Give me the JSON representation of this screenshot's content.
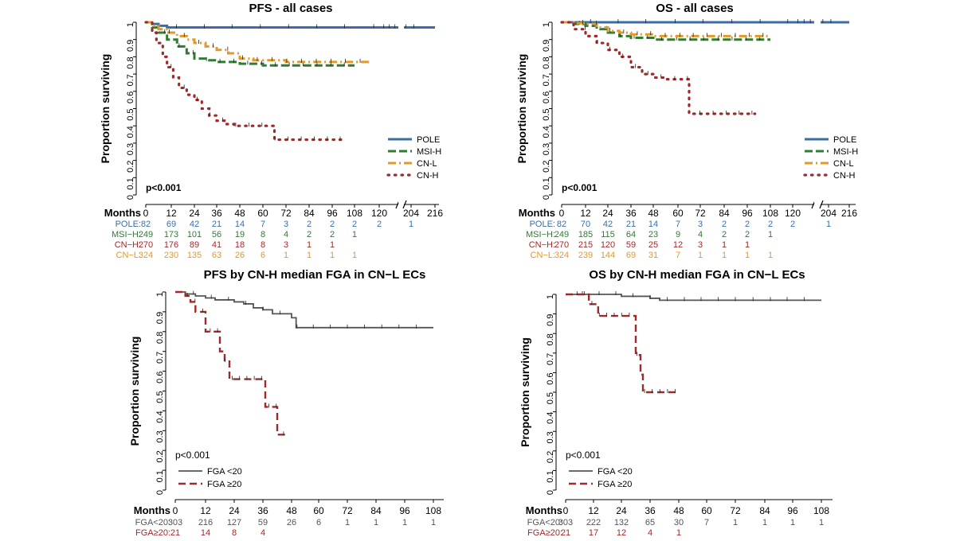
{
  "colors": {
    "pole": "#3a6ea5",
    "msih": "#2e7d32",
    "cnl": "#e09a2c",
    "cnh": "#9e2a2b",
    "fga_lo": "#555555",
    "fga_hi": "#9e2a2b",
    "axis": "#000000"
  },
  "chart_data": [
    {
      "id": "pfs-all",
      "type": "line",
      "subtype": "kaplan-meier",
      "title": "PFS - all cases",
      "ylabel": "Proportion surviving",
      "xlabel": "Months",
      "ylim": [
        0,
        1
      ],
      "yticks": [
        "0",
        "0.1",
        "0.2",
        "0.3",
        "0.4",
        "0.5",
        "0.6",
        "0.7",
        "0.8",
        "0.9",
        "1"
      ],
      "xticks": [
        "0",
        "12",
        "24",
        "36",
        "48",
        "60",
        "72",
        "84",
        "96",
        "108",
        "120",
        "204",
        "216"
      ],
      "axis_break": true,
      "pvalue": "p<0.001",
      "legend_position": "bottom-right",
      "series": [
        {
          "name": "POLE",
          "color_key": "pole",
          "x": [
            0,
            3,
            6,
            10,
            15,
            25,
            40,
            60,
            80,
            100,
            120,
            124,
            132,
            135,
            220
          ],
          "y": [
            1,
            0.99,
            0.98,
            0.97,
            0.97,
            0.97,
            0.97,
            0.97,
            0.97,
            0.97,
            0.97,
            0.97,
            0.97,
            0.97,
            0.97
          ]
        },
        {
          "name": "MSI-H",
          "color_key": "msih",
          "x": [
            0,
            3,
            6,
            10,
            15,
            20,
            24,
            30,
            36,
            42,
            48,
            55,
            60,
            72,
            84,
            96,
            108
          ],
          "y": [
            1,
            0.97,
            0.94,
            0.9,
            0.86,
            0.82,
            0.79,
            0.78,
            0.77,
            0.77,
            0.76,
            0.76,
            0.75,
            0.75,
            0.75,
            0.75,
            0.75
          ]
        },
        {
          "name": "CN-L",
          "color_key": "cnl",
          "x": [
            0,
            3,
            6,
            10,
            15,
            20,
            24,
            30,
            36,
            42,
            48,
            55,
            60,
            72,
            84,
            96,
            108,
            115
          ],
          "y": [
            1,
            0.98,
            0.96,
            0.94,
            0.92,
            0.9,
            0.88,
            0.86,
            0.84,
            0.82,
            0.79,
            0.78,
            0.78,
            0.77,
            0.77,
            0.77,
            0.77,
            0.77
          ]
        },
        {
          "name": "CN-H",
          "color_key": "cnh",
          "x": [
            0,
            3,
            5,
            8,
            10,
            13,
            16,
            20,
            24,
            28,
            32,
            36,
            40,
            45,
            50,
            55,
            60,
            66,
            72,
            84,
            96,
            102
          ],
          "y": [
            1,
            0.94,
            0.88,
            0.8,
            0.74,
            0.68,
            0.62,
            0.58,
            0.55,
            0.5,
            0.46,
            0.43,
            0.41,
            0.4,
            0.4,
            0.4,
            0.4,
            0.32,
            0.32,
            0.32,
            0.32,
            0.32
          ]
        }
      ],
      "risk_table": {
        "label": "Months",
        "ticks": [
          "0",
          "12",
          "24",
          "36",
          "48",
          "60",
          "72",
          "84",
          "96",
          "108",
          "120",
          "204",
          "216"
        ],
        "rows": [
          {
            "label": "POLE:",
            "color_key": "pole",
            "values": [
              "82",
              "69",
              "42",
              "21",
              "14",
              "7",
              "3",
              "2",
              "2",
              "2",
              "2",
              "1"
            ]
          },
          {
            "label": "MSI−H:",
            "color_key": "msih",
            "values": [
              "249",
              "173",
              "101",
              "56",
              "19",
              "8",
              "4",
              "2",
              "2",
              "1"
            ]
          },
          {
            "label": "CN−H:",
            "color_key": "cnh",
            "values": [
              "270",
              "176",
              "89",
              "41",
              "18",
              "8",
              "3",
              "1",
              "1"
            ]
          },
          {
            "label": "CN−L:",
            "color_key": "cnl",
            "values": [
              "324",
              "230",
              "135",
              "63",
              "26",
              "6",
              "1",
              "1",
              "1",
              "1"
            ]
          }
        ]
      }
    },
    {
      "id": "os-all",
      "type": "line",
      "subtype": "kaplan-meier",
      "title": "OS - all cases",
      "ylabel": "Proportion surviving",
      "xlabel": "Months",
      "ylim": [
        0,
        1
      ],
      "yticks": [
        "0",
        "0.1",
        "0.2",
        "0.3",
        "0.4",
        "0.5",
        "0.6",
        "0.7",
        "0.8",
        "0.9",
        "1"
      ],
      "xticks": [
        "0",
        "12",
        "24",
        "36",
        "48",
        "60",
        "72",
        "84",
        "96",
        "108",
        "120",
        "204",
        "216"
      ],
      "axis_break": true,
      "pvalue": "p<0.001",
      "legend_position": "bottom-right",
      "series": [
        {
          "name": "POLE",
          "color_key": "pole",
          "x": [
            0,
            10,
            30,
            60,
            90,
            120,
            135,
            220
          ],
          "y": [
            1,
            1,
            1,
            1,
            1,
            1,
            1,
            1
          ]
        },
        {
          "name": "MSI-H",
          "color_key": "msih",
          "x": [
            0,
            6,
            12,
            18,
            24,
            30,
            36,
            48,
            60,
            72,
            84,
            96,
            108
          ],
          "y": [
            1,
            0.99,
            0.98,
            0.96,
            0.94,
            0.92,
            0.91,
            0.9,
            0.9,
            0.9,
            0.9,
            0.9,
            0.9
          ]
        },
        {
          "name": "CN-L",
          "color_key": "cnl",
          "x": [
            0,
            6,
            12,
            18,
            24,
            30,
            36,
            48,
            60,
            72,
            84,
            96,
            108
          ],
          "y": [
            1,
            0.995,
            0.99,
            0.97,
            0.95,
            0.94,
            0.93,
            0.92,
            0.92,
            0.92,
            0.92,
            0.92,
            0.92
          ]
        },
        {
          "name": "CN-H",
          "color_key": "cnh",
          "x": [
            0,
            6,
            12,
            18,
            24,
            30,
            36,
            42,
            48,
            54,
            60,
            64,
            66,
            72,
            84,
            96,
            100
          ],
          "y": [
            1,
            0.96,
            0.92,
            0.88,
            0.84,
            0.8,
            0.74,
            0.7,
            0.68,
            0.67,
            0.67,
            0.67,
            0.47,
            0.47,
            0.47,
            0.47,
            0.47
          ]
        }
      ],
      "risk_table": {
        "label": "Months",
        "ticks": [
          "0",
          "12",
          "24",
          "36",
          "48",
          "60",
          "72",
          "84",
          "96",
          "108",
          "120",
          "204",
          "216"
        ],
        "rows": [
          {
            "label": "POLE:",
            "color_key": "pole",
            "values": [
              "82",
              "70",
              "42",
              "21",
              "14",
              "7",
              "3",
              "2",
              "2",
              "2",
              "2",
              "1"
            ]
          },
          {
            "label": "MSI−H:",
            "color_key": "msih",
            "values": [
              "249",
              "185",
              "115",
              "64",
              "23",
              "9",
              "4",
              "2",
              "2",
              "1"
            ]
          },
          {
            "label": "CN−H:",
            "color_key": "cnh",
            "values": [
              "270",
              "215",
              "120",
              "59",
              "25",
              "12",
              "3",
              "1",
              "1"
            ]
          },
          {
            "label": "CN−L:",
            "color_key": "cnl",
            "values": [
              "324",
              "239",
              "144",
              "69",
              "31",
              "7",
              "1",
              "1",
              "1",
              "1"
            ]
          }
        ]
      }
    },
    {
      "id": "pfs-fga",
      "type": "line",
      "subtype": "kaplan-meier",
      "title": "PFS by CN-H median FGA in CN−L ECs",
      "ylabel": "Proportion surviving",
      "xlabel": "Months",
      "ylim": [
        0,
        1
      ],
      "yticks": [
        "0",
        "0.1",
        "0.2",
        "0.3",
        "0.4",
        "0.5",
        "0.6",
        "0.7",
        "0.8",
        "0.9",
        "1"
      ],
      "xticks": [
        "0",
        "12",
        "24",
        "36",
        "48",
        "60",
        "72",
        "84",
        "96",
        "108"
      ],
      "axis_break": false,
      "pvalue": "p<0.001",
      "legend_position": "bottom-left",
      "series": [
        {
          "name": "FGA <20",
          "color_key": "fga_lo",
          "x": [
            0,
            4,
            8,
            12,
            16,
            20,
            24,
            28,
            32,
            36,
            40,
            44,
            48,
            50,
            60,
            72,
            84,
            96,
            108
          ],
          "y": [
            1,
            0.99,
            0.98,
            0.97,
            0.96,
            0.96,
            0.95,
            0.94,
            0.92,
            0.91,
            0.89,
            0.89,
            0.87,
            0.82,
            0.82,
            0.82,
            0.82,
            0.82,
            0.82
          ]
        },
        {
          "name": "FGA ≥20",
          "color_key": "fga_hi",
          "x": [
            0,
            4,
            6,
            8,
            12,
            16,
            18,
            20,
            22,
            30,
            36,
            37,
            40,
            42,
            46
          ],
          "y": [
            1,
            0.98,
            0.95,
            0.9,
            0.8,
            0.8,
            0.7,
            0.65,
            0.56,
            0.56,
            0.56,
            0.42,
            0.42,
            0.28,
            0.29
          ]
        }
      ],
      "risk_table": {
        "label": "Months",
        "ticks": [
          "0",
          "12",
          "24",
          "36",
          "48",
          "60",
          "72",
          "84",
          "96",
          "108"
        ],
        "rows": [
          {
            "label": "FGA<20:",
            "color_key": "fga_lo",
            "values": [
              "303",
              "216",
              "127",
              "59",
              "26",
              "6",
              "1",
              "1",
              "1",
              "1"
            ]
          },
          {
            "label": "FGA≥20:",
            "color_key": "fga_hi",
            "values": [
              "21",
              "14",
              "8",
              "4"
            ]
          }
        ]
      }
    },
    {
      "id": "os-fga",
      "type": "line",
      "subtype": "kaplan-meier",
      "title": "OS by CN-H median FGA in CN−L ECs",
      "ylabel": "Proportion surviving",
      "xlabel": "Months",
      "ylim": [
        0,
        1
      ],
      "yticks": [
        "0",
        "0.1",
        "0.2",
        "0.3",
        "0.4",
        "0.5",
        "0.6",
        "0.7",
        "0.8",
        "0.9",
        "1"
      ],
      "xticks": [
        "0",
        "12",
        "24",
        "36",
        "48",
        "60",
        "72",
        "84",
        "96",
        "108"
      ],
      "axis_break": false,
      "pvalue": "p<0.001",
      "legend_position": "bottom-left",
      "series": [
        {
          "name": "FGA <20",
          "color_key": "fga_lo",
          "x": [
            0,
            12,
            24,
            36,
            40,
            48,
            60,
            72,
            84,
            96,
            108
          ],
          "y": [
            1,
            1,
            0.99,
            0.98,
            0.97,
            0.97,
            0.97,
            0.97,
            0.97,
            0.97,
            0.97
          ]
        },
        {
          "name": "FGA ≥20",
          "color_key": "fga_hi",
          "x": [
            0,
            6,
            10,
            12,
            14,
            20,
            24,
            28,
            30,
            32,
            33,
            34,
            40,
            48
          ],
          "y": [
            1,
            1,
            0.95,
            0.95,
            0.89,
            0.89,
            0.89,
            0.89,
            0.69,
            0.59,
            0.5,
            0.5,
            0.5,
            0.5
          ]
        }
      ],
      "risk_table": {
        "label": "Months",
        "ticks": [
          "0",
          "12",
          "24",
          "36",
          "48",
          "60",
          "72",
          "84",
          "96",
          "108"
        ],
        "rows": [
          {
            "label": "FGA<20:",
            "color_key": "fga_lo",
            "values": [
              "303",
              "222",
              "132",
              "65",
              "30",
              "7",
              "1",
              "1",
              "1",
              "1"
            ]
          },
          {
            "label": "FGA≥20:",
            "color_key": "fga_hi",
            "values": [
              "21",
              "17",
              "12",
              "4",
              "1"
            ]
          }
        ]
      }
    }
  ]
}
